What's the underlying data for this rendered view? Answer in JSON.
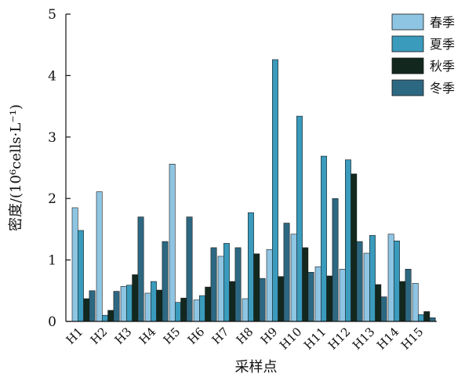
{
  "chart_data": {
    "type": "bar",
    "categories": [
      "H1",
      "H2",
      "H3",
      "H4",
      "H5",
      "H6",
      "H7",
      "H8",
      "H9",
      "H10",
      "H11",
      "H12",
      "H13",
      "H14",
      "H15"
    ],
    "series": [
      {
        "name": "春季",
        "color": "#8ec5e3",
        "values": [
          1.85,
          2.11,
          0.57,
          0.46,
          2.56,
          0.35,
          1.06,
          0.37,
          1.17,
          1.42,
          0.89,
          0.85,
          1.11,
          1.42,
          0.62
        ]
      },
      {
        "name": "夏季",
        "color": "#3a9bbd",
        "values": [
          1.48,
          0.1,
          0.59,
          0.65,
          0.31,
          0.42,
          1.27,
          1.77,
          4.26,
          3.34,
          2.69,
          2.63,
          1.4,
          1.31,
          0.11
        ]
      },
      {
        "name": "秋季",
        "color": "#12281e",
        "values": [
          0.37,
          0.18,
          0.76,
          0.51,
          0.38,
          0.56,
          0.65,
          1.1,
          0.73,
          1.2,
          0.74,
          2.4,
          0.6,
          0.65,
          0.16
        ]
      },
      {
        "name": "冬季",
        "color": "#2d6882",
        "values": [
          0.5,
          0.49,
          1.7,
          1.3,
          1.7,
          1.2,
          1.2,
          0.7,
          1.6,
          0.8,
          2.0,
          1.3,
          0.4,
          0.85,
          0.06
        ]
      }
    ],
    "title": "",
    "xlabel": "采样点",
    "ylabel": "密度/(10⁶cells·L⁻¹)",
    "ylim": [
      0,
      5
    ],
    "yticks": [
      "0",
      "1",
      "2",
      "3",
      "4",
      "5"
    ],
    "legend_position": "top-right",
    "grid": false
  }
}
